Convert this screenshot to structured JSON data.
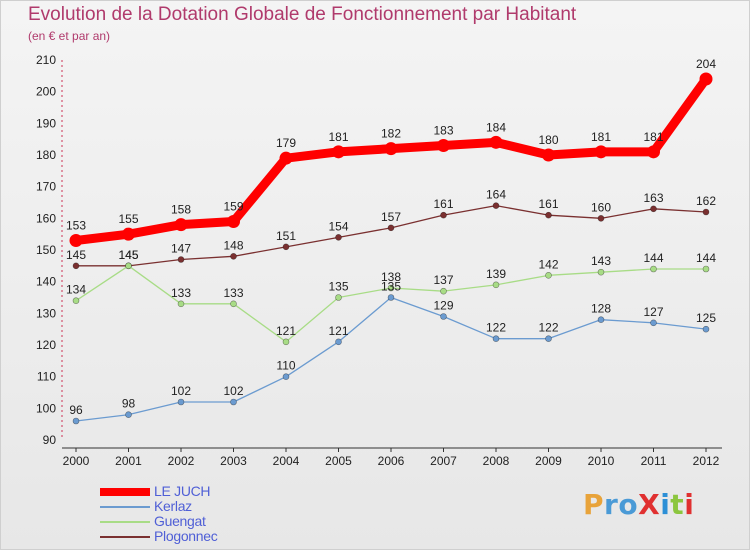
{
  "header": {
    "title": "Evolution de la Dotation Globale de Fonctionnement par Habitant",
    "subtitle": "(en € et par an)"
  },
  "logo": {
    "text": "ProXiti",
    "letter_colors": [
      "#e8a33a",
      "#4a9ad6",
      "#4a9ad6",
      "#e03030",
      "#2c8fd6",
      "#8cc63f",
      "#e03030"
    ]
  },
  "chart_data": {
    "type": "line",
    "title": "Evolution de la Dotation Globale de Fonctionnement par Habitant",
    "subtitle": "(en € et par an)",
    "xlabel": "",
    "ylabel": "",
    "x": [
      "2000",
      "2001",
      "2002",
      "2003",
      "2004",
      "2005",
      "2006",
      "2007",
      "2008",
      "2009",
      "2010",
      "2011",
      "2012"
    ],
    "ylim": [
      90,
      210
    ],
    "yticks": [
      90,
      100,
      110,
      120,
      130,
      140,
      150,
      160,
      170,
      180,
      190,
      200,
      210
    ],
    "grid": false,
    "legend_position": "bottom-left",
    "series": [
      {
        "name": "LE JUCH",
        "color": "#ff0000",
        "style": "thick",
        "values": [
          153,
          155,
          158,
          159,
          179,
          181,
          182,
          183,
          184,
          180,
          181,
          181,
          204
        ]
      },
      {
        "name": "Kerlaz",
        "color": "#6b9bd0",
        "style": "thin",
        "values": [
          96,
          98,
          102,
          102,
          110,
          121,
          135,
          129,
          122,
          122,
          128,
          127,
          125
        ]
      },
      {
        "name": "Guengat",
        "color": "#a8dc86",
        "style": "thin",
        "values": [
          134,
          145,
          133,
          133,
          121,
          135,
          138,
          137,
          139,
          142,
          143,
          144,
          144
        ]
      },
      {
        "name": "Plogonnec",
        "color": "#7a3030",
        "style": "thin",
        "values": [
          145,
          145,
          147,
          148,
          151,
          154,
          157,
          161,
          164,
          161,
          160,
          163,
          162
        ]
      }
    ]
  }
}
